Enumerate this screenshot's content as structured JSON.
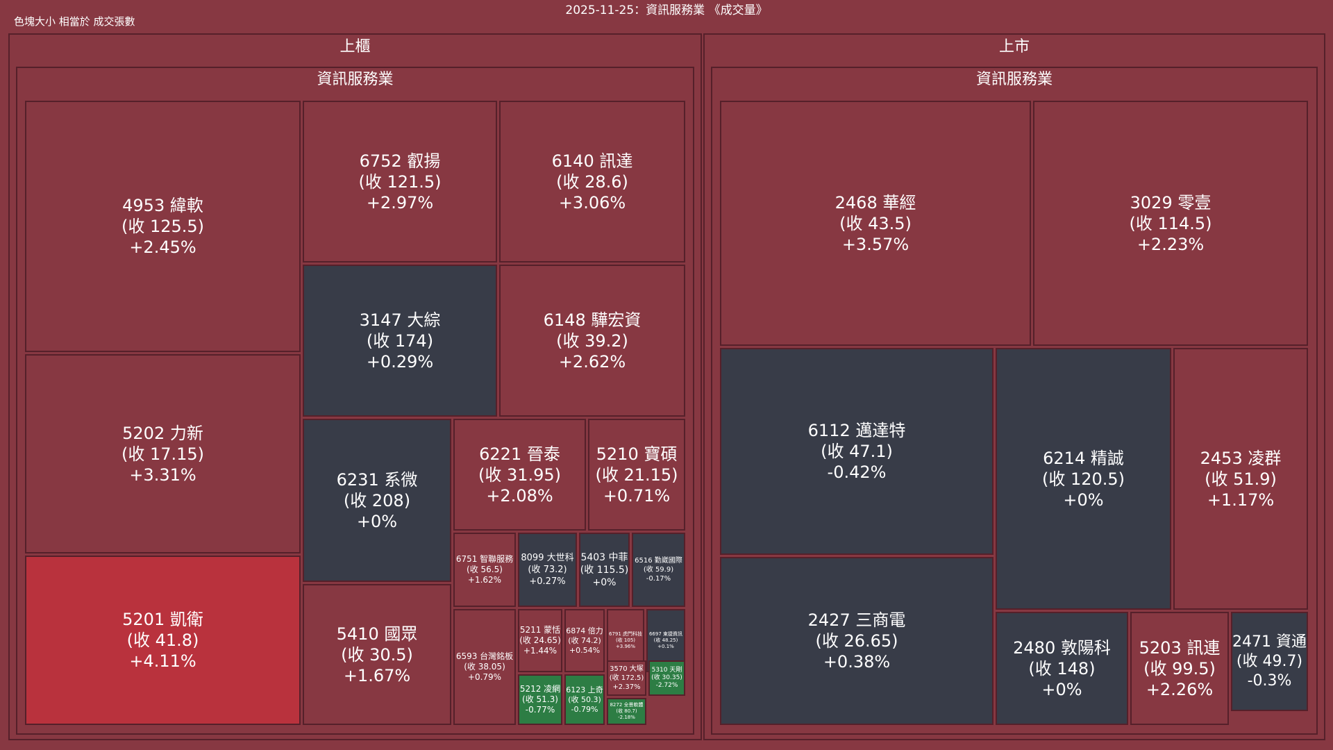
{
  "header": {
    "title": "2025-11-25：資訊服務業 《成交量》",
    "subtitle": "色塊大小 相當於 成交張數"
  },
  "colors": {
    "background": "#873842",
    "up_strong": "#b9323d",
    "up": "#873842",
    "flat": "#383c48",
    "down": "#2d7d44",
    "border": "#55202a"
  },
  "chart_data": {
    "type": "treemap",
    "size_metric": "成交張數",
    "groups": [
      {
        "market": "上櫃",
        "industry": "資訊服務業",
        "tiles": [
          {
            "code": "4953",
            "name": "緯軟",
            "close": "125.5",
            "change": "+2.45%",
            "color": "up"
          },
          {
            "code": "5202",
            "name": "力新",
            "close": "17.15",
            "change": "+3.31%",
            "color": "up"
          },
          {
            "code": "5201",
            "name": "凱衛",
            "close": "41.8",
            "change": "+4.11%",
            "color": "up_strong"
          },
          {
            "code": "6752",
            "name": "叡揚",
            "close": "121.5",
            "change": "+2.97%",
            "color": "up"
          },
          {
            "code": "6140",
            "name": "訊達",
            "close": "28.6",
            "change": "+3.06%",
            "color": "up"
          },
          {
            "code": "3147",
            "name": "大綜",
            "close": "174",
            "change": "+0.29%",
            "color": "flat"
          },
          {
            "code": "6148",
            "name": "驊宏資",
            "close": "39.2",
            "change": "+2.62%",
            "color": "up"
          },
          {
            "code": "6231",
            "name": "系微",
            "close": "208",
            "change": "+0%",
            "color": "flat"
          },
          {
            "code": "5410",
            "name": "國眾",
            "close": "30.5",
            "change": "+1.67%",
            "color": "up"
          },
          {
            "code": "6221",
            "name": "晉泰",
            "close": "31.95",
            "change": "+2.08%",
            "color": "up"
          },
          {
            "code": "5210",
            "name": "寶碩",
            "close": "21.15",
            "change": "+0.71%",
            "color": "up"
          },
          {
            "code": "6751",
            "name": "智聯服務",
            "close": "56.5",
            "change": "+1.62%",
            "color": "up"
          },
          {
            "code": "8099",
            "name": "大世科",
            "close": "73.2",
            "change": "+0.27%",
            "color": "flat"
          },
          {
            "code": "5403",
            "name": "中菲",
            "close": "115.5",
            "change": "+0%",
            "color": "flat"
          },
          {
            "code": "6516",
            "name": "勤崴國際",
            "close": "59.9",
            "change": "-0.17%",
            "color": "flat"
          },
          {
            "code": "6593",
            "name": "台灣銘板",
            "close": "38.05",
            "change": "+0.79%",
            "color": "up"
          },
          {
            "code": "5211",
            "name": "蒙恬",
            "close": "24.65",
            "change": "+1.44%",
            "color": "up"
          },
          {
            "code": "6874",
            "name": "倍力",
            "close": "74.2",
            "change": "+0.54%",
            "color": "up"
          },
          {
            "code": "6791",
            "name": "虎門科技",
            "close": "105",
            "change": "+3.96%",
            "color": "up"
          },
          {
            "code": "6697",
            "name": "東捷資訊",
            "close": "48.25",
            "change": "+0.1%",
            "color": "flat"
          },
          {
            "code": "3570",
            "name": "大塚",
            "close": "172.5",
            "change": "+2.37%",
            "color": "up"
          },
          {
            "code": "5310",
            "name": "天剛",
            "close": "30.35",
            "change": "-2.72%",
            "color": "down"
          },
          {
            "code": "5212",
            "name": "凌網",
            "close": "51.3",
            "change": "-0.77%",
            "color": "down"
          },
          {
            "code": "6123",
            "name": "上奇",
            "close": "50.3",
            "change": "-0.79%",
            "color": "down"
          },
          {
            "code": "8272",
            "name": "全景軟體",
            "close": "80.7",
            "change": "-2.18%",
            "color": "down"
          }
        ]
      },
      {
        "market": "上市",
        "industry": "資訊服務業",
        "tiles": [
          {
            "code": "2468",
            "name": "華經",
            "close": "43.5",
            "change": "+3.57%",
            "color": "up"
          },
          {
            "code": "3029",
            "name": "零壹",
            "close": "114.5",
            "change": "+2.23%",
            "color": "up"
          },
          {
            "code": "6112",
            "name": "邁達特",
            "close": "47.1",
            "change": "-0.42%",
            "color": "flat"
          },
          {
            "code": "2427",
            "name": "三商電",
            "close": "26.65",
            "change": "+0.38%",
            "color": "flat"
          },
          {
            "code": "6214",
            "name": "精誠",
            "close": "120.5",
            "change": "+0%",
            "color": "flat"
          },
          {
            "code": "2453",
            "name": "凌群",
            "close": "51.9",
            "change": "+1.17%",
            "color": "up"
          },
          {
            "code": "2480",
            "name": "敦陽科",
            "close": "148",
            "change": "+0%",
            "color": "flat"
          },
          {
            "code": "5203",
            "name": "訊連",
            "close": "99.5",
            "change": "+2.26%",
            "color": "up"
          },
          {
            "code": "2471",
            "name": "資通",
            "close": "49.7",
            "change": "-0.3%",
            "color": "flat"
          }
        ]
      }
    ]
  }
}
